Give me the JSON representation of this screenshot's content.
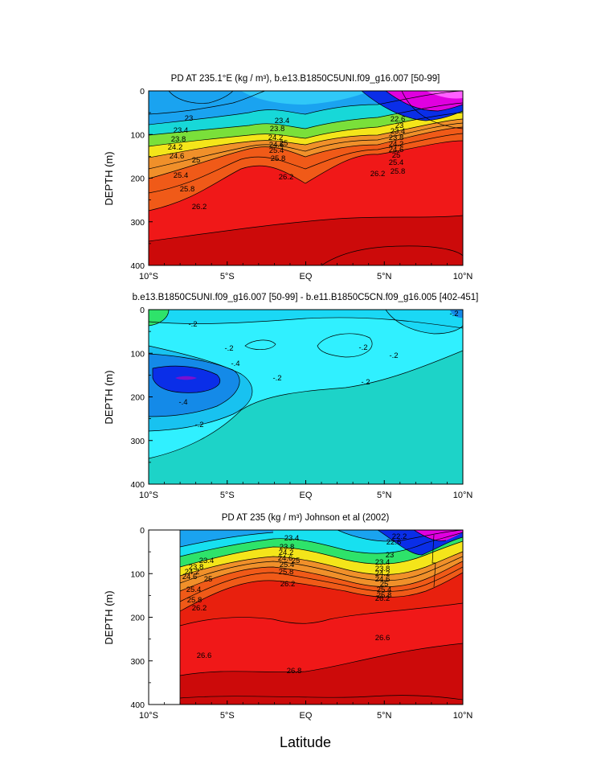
{
  "figure": {
    "xlabel": "Latitude",
    "colors": {
      "magenta": "#e000e0",
      "blue": "#0a2ee8",
      "sky": "#1aa3f0",
      "cyan": "#17e0f0",
      "green": "#2ee36a",
      "yellow": "#f4e51a",
      "orange": "#f07a18",
      "red": "#f01818",
      "darkred": "#cc0a0a",
      "aqua": "#1dd3c8",
      "pale_cyan": "#30f0ff",
      "violet": "#7a10d0"
    }
  },
  "chart_data": [
    {
      "type": "contour",
      "title": "PD AT 235.1°E (kg / m³), b.e13.B1850C5UNI.f09_g16.007 [50-99]",
      "ylabel": "DEPTH (m)",
      "ylim": [
        400,
        0
      ],
      "yticks": [
        "0",
        "100",
        "200",
        "300",
        "400"
      ],
      "xlim": [
        -10,
        10
      ],
      "xticks": [
        "10°S",
        "5°S",
        "EQ",
        "5°N",
        "10°N"
      ],
      "contour_labels": [
        "23",
        "23.4",
        "23.8",
        "24.2",
        "24.6",
        "25",
        "25.4",
        "25.8",
        "26.2",
        "23.4",
        "23.8",
        "24.2",
        "24.6",
        "25",
        "25.4",
        "25.8",
        "26.2",
        "22.6",
        "23",
        "23.4",
        "23.8",
        "24.2",
        "24.6",
        "25",
        "25.4",
        "25.8",
        "26.2"
      ],
      "label_values": [
        "23",
        "23.4",
        "23.8",
        "24.2",
        "24.6",
        "25",
        "25.4",
        "25.8",
        "26.2",
        "23.4",
        "23.8",
        "24.2",
        "24.6",
        "25",
        "25.4",
        "25.8",
        "26.2",
        "22.6",
        "23",
        "23.4",
        "23.8",
        "24.2",
        "24.6",
        "25",
        "25.4",
        "25.8",
        "26.2"
      ]
    },
    {
      "type": "contour",
      "title": "b.e13.B1850C5UNI.f09_g16.007 [50-99] - b.e11.B1850C5CN.f09_g16.005 [402-451]",
      "ylabel": "DEPTH (m)",
      "ylim": [
        400,
        0
      ],
      "yticks": [
        "0",
        "100",
        "200",
        "300",
        "400"
      ],
      "xlim": [
        -10,
        10
      ],
      "xticks": [
        "10°S",
        "5°S",
        "EQ",
        "5°N",
        "10°N"
      ],
      "contour_labels": [
        "-.2",
        "-.2",
        "-.2",
        "-.4",
        "-.4",
        "-.2",
        "-.2",
        "-.2",
        "-.2",
        "-.2"
      ]
    },
    {
      "type": "contour",
      "title": "PD AT 235 (kg / m³) Johnson et al (2002)",
      "ylabel": "DEPTH (m)",
      "ylim": [
        400,
        0
      ],
      "yticks": [
        "0",
        "100",
        "200",
        "300",
        "400"
      ],
      "xlim": [
        -10,
        10
      ],
      "xticks": [
        "10°S",
        "5°S",
        "EQ",
        "5°N",
        "10°N"
      ],
      "data_start_lat": -8,
      "contour_labels": [
        "23.4",
        "23.8",
        "24.2",
        "24.6",
        "25",
        "25.4",
        "25.8",
        "26.2",
        "23.4",
        "23.8",
        "24.2",
        "24.6",
        "25",
        "25.4",
        "25.8",
        "26.2",
        "22.2",
        "22.6",
        "23",
        "23.4",
        "23.8",
        "24.2",
        "24.6",
        "25",
        "25.4",
        "25.8",
        "26.2",
        "26.6",
        "26.6",
        "26.8"
      ]
    }
  ]
}
